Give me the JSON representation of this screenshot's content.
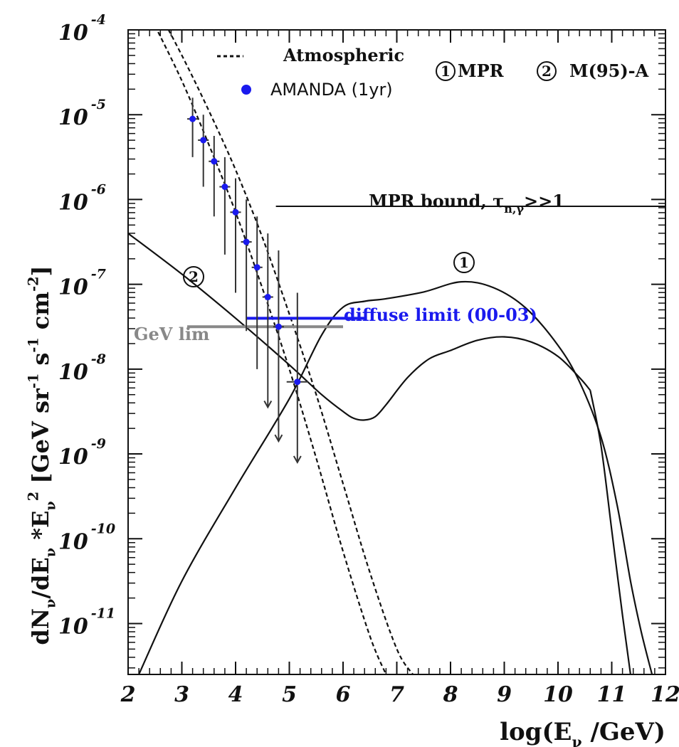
{
  "chart_data": {
    "type": "line",
    "xlabel_parts": {
      "pre": "log(E",
      "sub": "ν",
      "post": " /GeV)"
    },
    "ylabel_parts": [
      {
        "t": "dN"
      },
      {
        "t": "ν",
        "sub": true
      },
      {
        "t": "/dE"
      },
      {
        "t": "ν",
        "sub": true
      },
      {
        "t": " *E"
      },
      {
        "t": "ν",
        "sub": true
      },
      {
        "t": "2",
        "sup": true
      },
      {
        "t": " [GeV sr"
      },
      {
        "t": "-1",
        "sup": true
      },
      {
        "t": " s"
      },
      {
        "t": "-1",
        "sup": true
      },
      {
        "t": " cm"
      },
      {
        "t": "-2",
        "sup": true
      },
      {
        "t": "]"
      }
    ],
    "xlim": [
      2,
      12
    ],
    "ylim_log10": [
      -11.6,
      -4.0
    ],
    "x_ticks": [
      2,
      3,
      4,
      5,
      6,
      7,
      8,
      9,
      10,
      11,
      12
    ],
    "y_ticks": [
      {
        "base": "10",
        "exp": "-4",
        "value": -4
      },
      {
        "base": "10",
        "exp": "-5",
        "value": -5
      },
      {
        "base": "10",
        "exp": "-6",
        "value": -6
      },
      {
        "base": "10",
        "exp": "-7",
        "value": -7
      },
      {
        "base": "10",
        "exp": "-8",
        "value": -8
      },
      {
        "base": "10",
        "exp": "-9",
        "value": -9
      },
      {
        "base": "10",
        "exp": "-10",
        "value": -10
      },
      {
        "base": "10",
        "exp": "-11",
        "value": -11
      }
    ],
    "legend": {
      "atmospheric": "Atmospheric",
      "amanda": "AMANDA (1yr)",
      "model1_num": "1",
      "model1_name": "MPR",
      "model2_num": "2",
      "model2_name": "M(95)-A"
    },
    "annotations": {
      "mpr_bound_pre": "MPR bound, τ",
      "mpr_bound_sub": "n,γ",
      "mpr_bound_post": ">>1",
      "diffuse_limit": "diffuse limit (00-03)",
      "gev_limit": "GeV lim",
      "curve1_label": "1",
      "curve2_label": "2"
    },
    "colors": {
      "amanda": "#1a1aee",
      "gev_limit": "#888888",
      "curves": "#111111"
    },
    "series": [
      {
        "kind": "mpr_bound",
        "x": [
          4.75,
          12
        ],
        "y_log10": [
          -6.08,
          -6.08
        ]
      },
      {
        "kind": "model1_upper",
        "x": [
          2.2,
          3.0,
          4.0,
          5.0,
          5.6,
          6.0,
          6.4,
          6.8,
          7.5,
          8.2,
          8.8,
          9.4,
          10.0,
          10.4,
          10.8,
          11.1,
          11.35,
          11.55,
          11.75
        ],
        "y_log10": [
          -11.6,
          -10.5,
          -9.4,
          -8.35,
          -7.6,
          -7.27,
          -7.2,
          -7.17,
          -7.09,
          -6.97,
          -7.04,
          -7.28,
          -7.72,
          -8.15,
          -8.8,
          -9.6,
          -10.5,
          -11.1,
          -11.6
        ]
      },
      {
        "kind": "model1_lower",
        "x": [
          10.6,
          10.8,
          11.0,
          11.2,
          11.35
        ],
        "y_log10": [
          -8.25,
          -8.9,
          -9.9,
          -10.9,
          -11.6
        ]
      },
      {
        "kind": "model2",
        "x": [
          2.0,
          3.0,
          4.0,
          5.0,
          5.6,
          6.0,
          6.2,
          6.4,
          6.6,
          6.8,
          7.2,
          7.6,
          8.0,
          8.5,
          9.0,
          9.5,
          10.0,
          10.4,
          10.6
        ],
        "y_log10": [
          -6.4,
          -6.88,
          -7.4,
          -7.95,
          -8.3,
          -8.5,
          -8.58,
          -8.6,
          -8.56,
          -8.42,
          -8.1,
          -7.88,
          -7.78,
          -7.66,
          -7.62,
          -7.68,
          -7.85,
          -8.1,
          -8.25
        ]
      },
      {
        "kind": "atmospheric_upper",
        "x": [
          2.5,
          3.0,
          3.5,
          4.0,
          4.5,
          5.0,
          5.5,
          6.0,
          6.5,
          7.0,
          7.3
        ],
        "y_log10": [
          -3.7,
          -4.3,
          -4.95,
          -5.65,
          -6.45,
          -7.35,
          -8.3,
          -9.35,
          -10.4,
          -11.3,
          -11.6
        ]
      },
      {
        "kind": "atmospheric_lower",
        "x": [
          2.5,
          3.0,
          3.5,
          4.0,
          4.5,
          5.0,
          5.5,
          6.0,
          6.5,
          6.8
        ],
        "y_log10": [
          -3.95,
          -4.6,
          -5.35,
          -6.15,
          -7.05,
          -8.0,
          -9.05,
          -10.15,
          -11.15,
          -11.6
        ]
      },
      {
        "kind": "amanda_points",
        "x": [
          3.2,
          3.4,
          3.6,
          3.8,
          4.0,
          4.2,
          4.4,
          4.6,
          4.8,
          5.15
        ],
        "x_err": [
          0.1,
          0.1,
          0.1,
          0.1,
          0.1,
          0.1,
          0.1,
          0.1,
          0.1,
          0.2
        ],
        "y_log10": [
          -5.05,
          -5.3,
          -5.55,
          -5.85,
          -6.15,
          -6.5,
          -6.8,
          -7.15,
          -7.5,
          -8.15
        ],
        "y_err_up": [
          0.25,
          0.3,
          0.3,
          0.35,
          0.4,
          0.5,
          0.6,
          0.75,
          0.9,
          1.05
        ],
        "y_err_down": [
          0.45,
          0.55,
          0.65,
          0.8,
          0.95,
          1.05,
          1.2,
          1.3,
          1.35,
          0.95
        ],
        "upper_limit_arrow": [
          false,
          false,
          false,
          false,
          false,
          false,
          false,
          true,
          true,
          true
        ]
      },
      {
        "kind": "diffuse_limit",
        "x": [
          4.2,
          6.4
        ],
        "y_log10": [
          -7.4,
          -7.4
        ]
      },
      {
        "kind": "gev_limit",
        "x": [
          3.1,
          6.0
        ],
        "y_log10": [
          -7.5,
          -7.5
        ]
      }
    ]
  }
}
